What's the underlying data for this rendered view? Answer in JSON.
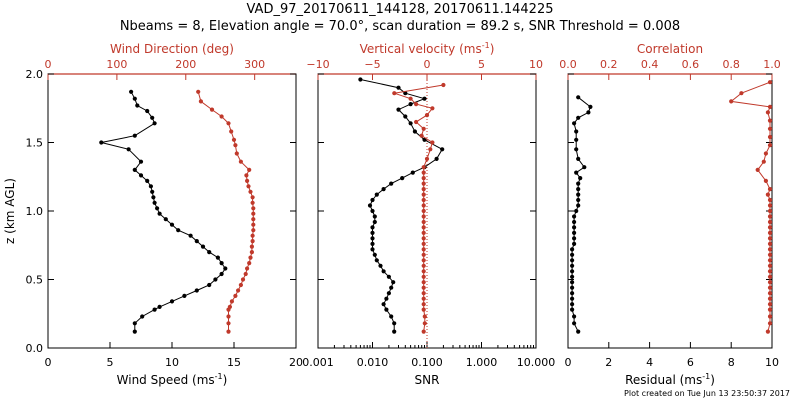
{
  "title": "VAD_97_20170611_144128, 20170611.144225",
  "subtitle": "Nbeams = 8, Elevation angle = 70.0°, scan duration = 89.2 s, SNR Threshold = 0.008",
  "footer": "Plot created on Tue Jun 13 23:50:37 2017",
  "colors": {
    "black": "#000000",
    "red": "#c0392b",
    "dotted_line": "#c0392b"
  },
  "chart_data": [
    {
      "type": "line",
      "ylabel": "z (km AGL)",
      "ylim": [
        0,
        2.0
      ],
      "yticks": [
        "0.0",
        "0.5",
        "1.0",
        "1.5",
        "2.0"
      ],
      "bottom_axis": {
        "label": "Wind Speed (ms",
        "label_sup": "-1",
        "label_end": ")",
        "xlim": [
          0,
          20
        ],
        "ticks": [
          "0",
          "5",
          "10",
          "15",
          "20"
        ]
      },
      "top_axis": {
        "label": "Wind Direction (deg)",
        "xlim": [
          0,
          360
        ],
        "ticks": [
          "0",
          "100",
          "200",
          "300"
        ]
      },
      "series": [
        {
          "color": "black",
          "axis": "bottom",
          "x": [
            7.0,
            7.0,
            7.6,
            8.6,
            9.0,
            10.0,
            11.0,
            12.0,
            13.0,
            13.5,
            14.0,
            14.3,
            14.0,
            13.7,
            13.0,
            12.5,
            12.0,
            11.5,
            10.5,
            10.0,
            9.5,
            9.0,
            8.8,
            8.6,
            8.5,
            8.4,
            8.3,
            8.0,
            7.5,
            7.0,
            7.5,
            6.5,
            4.3,
            7.0,
            8.6,
            8.4,
            8.0,
            7.2,
            7.0,
            6.7
          ],
          "y": [
            0.12,
            0.18,
            0.23,
            0.28,
            0.3,
            0.34,
            0.38,
            0.42,
            0.46,
            0.5,
            0.54,
            0.58,
            0.62,
            0.66,
            0.7,
            0.74,
            0.78,
            0.82,
            0.86,
            0.9,
            0.94,
            0.98,
            1.02,
            1.06,
            1.1,
            1.14,
            1.18,
            1.22,
            1.26,
            1.3,
            1.36,
            1.45,
            1.5,
            1.55,
            1.64,
            1.68,
            1.73,
            1.77,
            1.82,
            1.87
          ]
        },
        {
          "color": "red",
          "axis": "top",
          "x": [
            262,
            262,
            262,
            262,
            264,
            267,
            272,
            276,
            280,
            283,
            287,
            289,
            292,
            294,
            296,
            296,
            297,
            297,
            298,
            298,
            298,
            298,
            298,
            297,
            297,
            294,
            291,
            289,
            288,
            292,
            280,
            274,
            272,
            270,
            266,
            262,
            252,
            238,
            222,
            218
          ],
          "y": [
            0.12,
            0.18,
            0.23,
            0.28,
            0.3,
            0.34,
            0.38,
            0.42,
            0.46,
            0.5,
            0.54,
            0.58,
            0.62,
            0.66,
            0.7,
            0.74,
            0.78,
            0.82,
            0.86,
            0.9,
            0.94,
            0.98,
            1.02,
            1.06,
            1.1,
            1.14,
            1.18,
            1.22,
            1.26,
            1.3,
            1.36,
            1.42,
            1.48,
            1.52,
            1.58,
            1.64,
            1.69,
            1.74,
            1.8,
            1.87
          ]
        }
      ]
    },
    {
      "type": "line",
      "ylim": [
        0,
        2.0
      ],
      "bottom_axis": {
        "label": "SNR",
        "scale": "log",
        "xlim": [
          0.001,
          10.0
        ],
        "ticks": [
          "0.001",
          "0.010",
          "0.100",
          "1.000",
          "10.000"
        ]
      },
      "top_axis": {
        "label": "Vertical velocity (ms",
        "label_sup": "-1",
        "label_end": ")",
        "xlim": [
          -10,
          10
        ],
        "ticks": [
          "−10",
          "−5",
          "0",
          "5",
          "10"
        ]
      },
      "reference_line": {
        "axis": "bottom",
        "x": 0.1,
        "style": "dotted"
      },
      "series": [
        {
          "color": "black",
          "axis": "bottom",
          "x": [
            0.025,
            0.025,
            0.022,
            0.018,
            0.016,
            0.018,
            0.02,
            0.022,
            0.024,
            0.02,
            0.016,
            0.014,
            0.012,
            0.011,
            0.01,
            0.01,
            0.01,
            0.01,
            0.01,
            0.011,
            0.011,
            0.01,
            0.009,
            0.01,
            0.012,
            0.016,
            0.022,
            0.035,
            0.055,
            0.09,
            0.15,
            0.19,
            0.09,
            0.06,
            0.05,
            0.04,
            0.03,
            0.05,
            0.09,
            0.04,
            0.03,
            0.006
          ],
          "y": [
            0.12,
            0.18,
            0.23,
            0.28,
            0.32,
            0.36,
            0.4,
            0.44,
            0.48,
            0.52,
            0.56,
            0.6,
            0.64,
            0.68,
            0.72,
            0.76,
            0.8,
            0.84,
            0.88,
            0.92,
            0.96,
            1.0,
            1.04,
            1.08,
            1.12,
            1.16,
            1.2,
            1.24,
            1.28,
            1.32,
            1.38,
            1.45,
            1.52,
            1.58,
            1.64,
            1.69,
            1.74,
            1.78,
            1.82,
            1.86,
            1.9,
            1.96
          ]
        },
        {
          "color": "red",
          "axis": "top",
          "x": [
            -0.3,
            -0.2,
            -0.2,
            -0.3,
            -0.3,
            -0.3,
            -0.3,
            -0.3,
            -0.3,
            -0.3,
            -0.3,
            -0.3,
            -0.3,
            -0.3,
            -0.3,
            -0.3,
            -0.3,
            -0.3,
            -0.3,
            -0.3,
            -0.3,
            -0.3,
            -0.3,
            -0.3,
            -0.3,
            -0.3,
            -0.3,
            -0.3,
            -0.3,
            -0.3,
            0.0,
            0.3,
            0.5,
            -0.5,
            -0.3,
            -1.0,
            0.0,
            0.5,
            -1.0,
            -1.5,
            -3.0,
            1.5
          ],
          "y": [
            0.12,
            0.18,
            0.23,
            0.28,
            0.32,
            0.36,
            0.4,
            0.44,
            0.48,
            0.52,
            0.56,
            0.6,
            0.64,
            0.68,
            0.72,
            0.76,
            0.8,
            0.84,
            0.88,
            0.92,
            0.96,
            1.0,
            1.04,
            1.08,
            1.12,
            1.16,
            1.2,
            1.24,
            1.28,
            1.32,
            1.38,
            1.45,
            1.5,
            1.55,
            1.6,
            1.65,
            1.7,
            1.75,
            1.78,
            1.82,
            1.86,
            1.92
          ]
        }
      ]
    },
    {
      "type": "line",
      "ylim": [
        0,
        2.0
      ],
      "bottom_axis": {
        "label": "Residual (ms",
        "label_sup": "-1",
        "label_end": ")",
        "xlim": [
          0,
          10
        ],
        "ticks": [
          "0",
          "2",
          "4",
          "6",
          "8",
          "10"
        ]
      },
      "top_axis": {
        "label": "Correlation",
        "xlim": [
          0,
          1.0
        ],
        "ticks": [
          "0.0",
          "0.2",
          "0.4",
          "0.6",
          "0.8",
          "1.0"
        ]
      },
      "series": [
        {
          "color": "black",
          "axis": "bottom",
          "x": [
            0.5,
            0.3,
            0.3,
            0.2,
            0.2,
            0.2,
            0.2,
            0.2,
            0.2,
            0.2,
            0.2,
            0.2,
            0.2,
            0.2,
            0.2,
            0.3,
            0.3,
            0.3,
            0.3,
            0.3,
            0.3,
            0.4,
            0.5,
            0.5,
            0.5,
            0.5,
            0.5,
            0.6,
            0.4,
            0.8,
            0.5,
            0.4,
            0.4,
            0.4,
            0.3,
            0.5,
            1.0,
            1.1,
            0.5
          ],
          "y": [
            0.12,
            0.18,
            0.23,
            0.28,
            0.32,
            0.36,
            0.4,
            0.44,
            0.48,
            0.52,
            0.56,
            0.6,
            0.64,
            0.68,
            0.72,
            0.76,
            0.8,
            0.84,
            0.88,
            0.92,
            0.96,
            1.0,
            1.04,
            1.08,
            1.12,
            1.16,
            1.2,
            1.24,
            1.28,
            1.32,
            1.38,
            1.45,
            1.52,
            1.58,
            1.64,
            1.68,
            1.72,
            1.76,
            1.83
          ]
        },
        {
          "color": "red",
          "axis": "top",
          "x": [
            0.98,
            0.99,
            0.99,
            0.99,
            0.99,
            0.99,
            0.99,
            0.99,
            0.99,
            0.99,
            0.99,
            0.99,
            0.99,
            0.99,
            0.99,
            0.99,
            0.99,
            0.99,
            0.99,
            0.99,
            0.99,
            0.99,
            0.99,
            0.99,
            0.98,
            0.99,
            0.97,
            0.93,
            0.96,
            0.97,
            0.99,
            0.99,
            0.99,
            0.99,
            0.98,
            0.99,
            0.8,
            0.85,
            0.99
          ],
          "y": [
            0.12,
            0.18,
            0.23,
            0.28,
            0.32,
            0.36,
            0.4,
            0.44,
            0.48,
            0.52,
            0.56,
            0.6,
            0.64,
            0.68,
            0.72,
            0.76,
            0.8,
            0.84,
            0.88,
            0.92,
            0.96,
            1.0,
            1.04,
            1.08,
            1.12,
            1.16,
            1.22,
            1.3,
            1.36,
            1.42,
            1.48,
            1.54,
            1.6,
            1.66,
            1.72,
            1.76,
            1.8,
            1.86,
            1.94
          ]
        }
      ]
    }
  ]
}
